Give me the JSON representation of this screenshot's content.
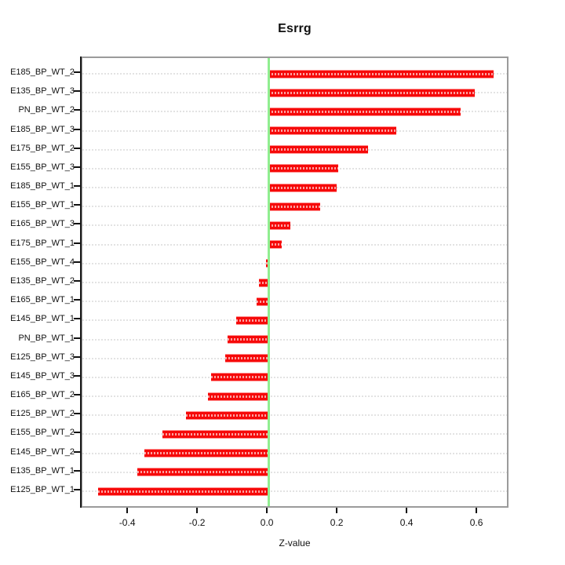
{
  "chart_data": {
    "type": "bar",
    "orientation": "horizontal",
    "title": "Esrrg",
    "xlabel": "Z-value",
    "categories": [
      "E185_BP_WT_2",
      "E135_BP_WT_3",
      "PN_BP_WT_2",
      "E185_BP_WT_3",
      "E175_BP_WT_2",
      "E155_BP_WT_3",
      "E185_BP_WT_1",
      "E155_BP_WT_1",
      "E165_BP_WT_3",
      "E175_BP_WT_1",
      "E155_BP_WT_4",
      "E135_BP_WT_2",
      "E165_BP_WT_1",
      "E145_BP_WT_1",
      "PN_BP_WT_1",
      "E125_BP_WT_3",
      "E145_BP_WT_3",
      "E165_BP_WT_2",
      "E125_BP_WT_2",
      "E155_BP_WT_2",
      "E145_BP_WT_2",
      "E135_BP_WT_1",
      "E125_BP_WT_1"
    ],
    "values": [
      0.645,
      0.59,
      0.55,
      0.365,
      0.285,
      0.2,
      0.195,
      0.147,
      0.063,
      0.038,
      -0.007,
      -0.027,
      -0.034,
      -0.092,
      -0.117,
      -0.125,
      -0.164,
      -0.173,
      -0.236,
      -0.303,
      -0.355,
      -0.375,
      -0.488
    ],
    "xtick_values": [
      -0.4,
      -0.2,
      0.0,
      0.2,
      0.4,
      0.6
    ],
    "xtick_labels": [
      "-0.4",
      "-0.2",
      "0.0",
      "0.2",
      "0.4",
      "0.6"
    ],
    "xlim": [
      -0.533,
      0.692
    ],
    "zero_line": true,
    "grid": "dashed-horizontal-per-category",
    "legend": "none",
    "colors": {
      "bar": "#f60909",
      "bar_edge": "#ff8f8f",
      "bar_center_dash": "rgba(255,255,255,0.62)",
      "zero_line": "#90ee90",
      "gridline": "#e3e3e3",
      "box_border": "#9b9b9b",
      "axis": "#1a1a1a",
      "background": "#ffffff"
    }
  }
}
